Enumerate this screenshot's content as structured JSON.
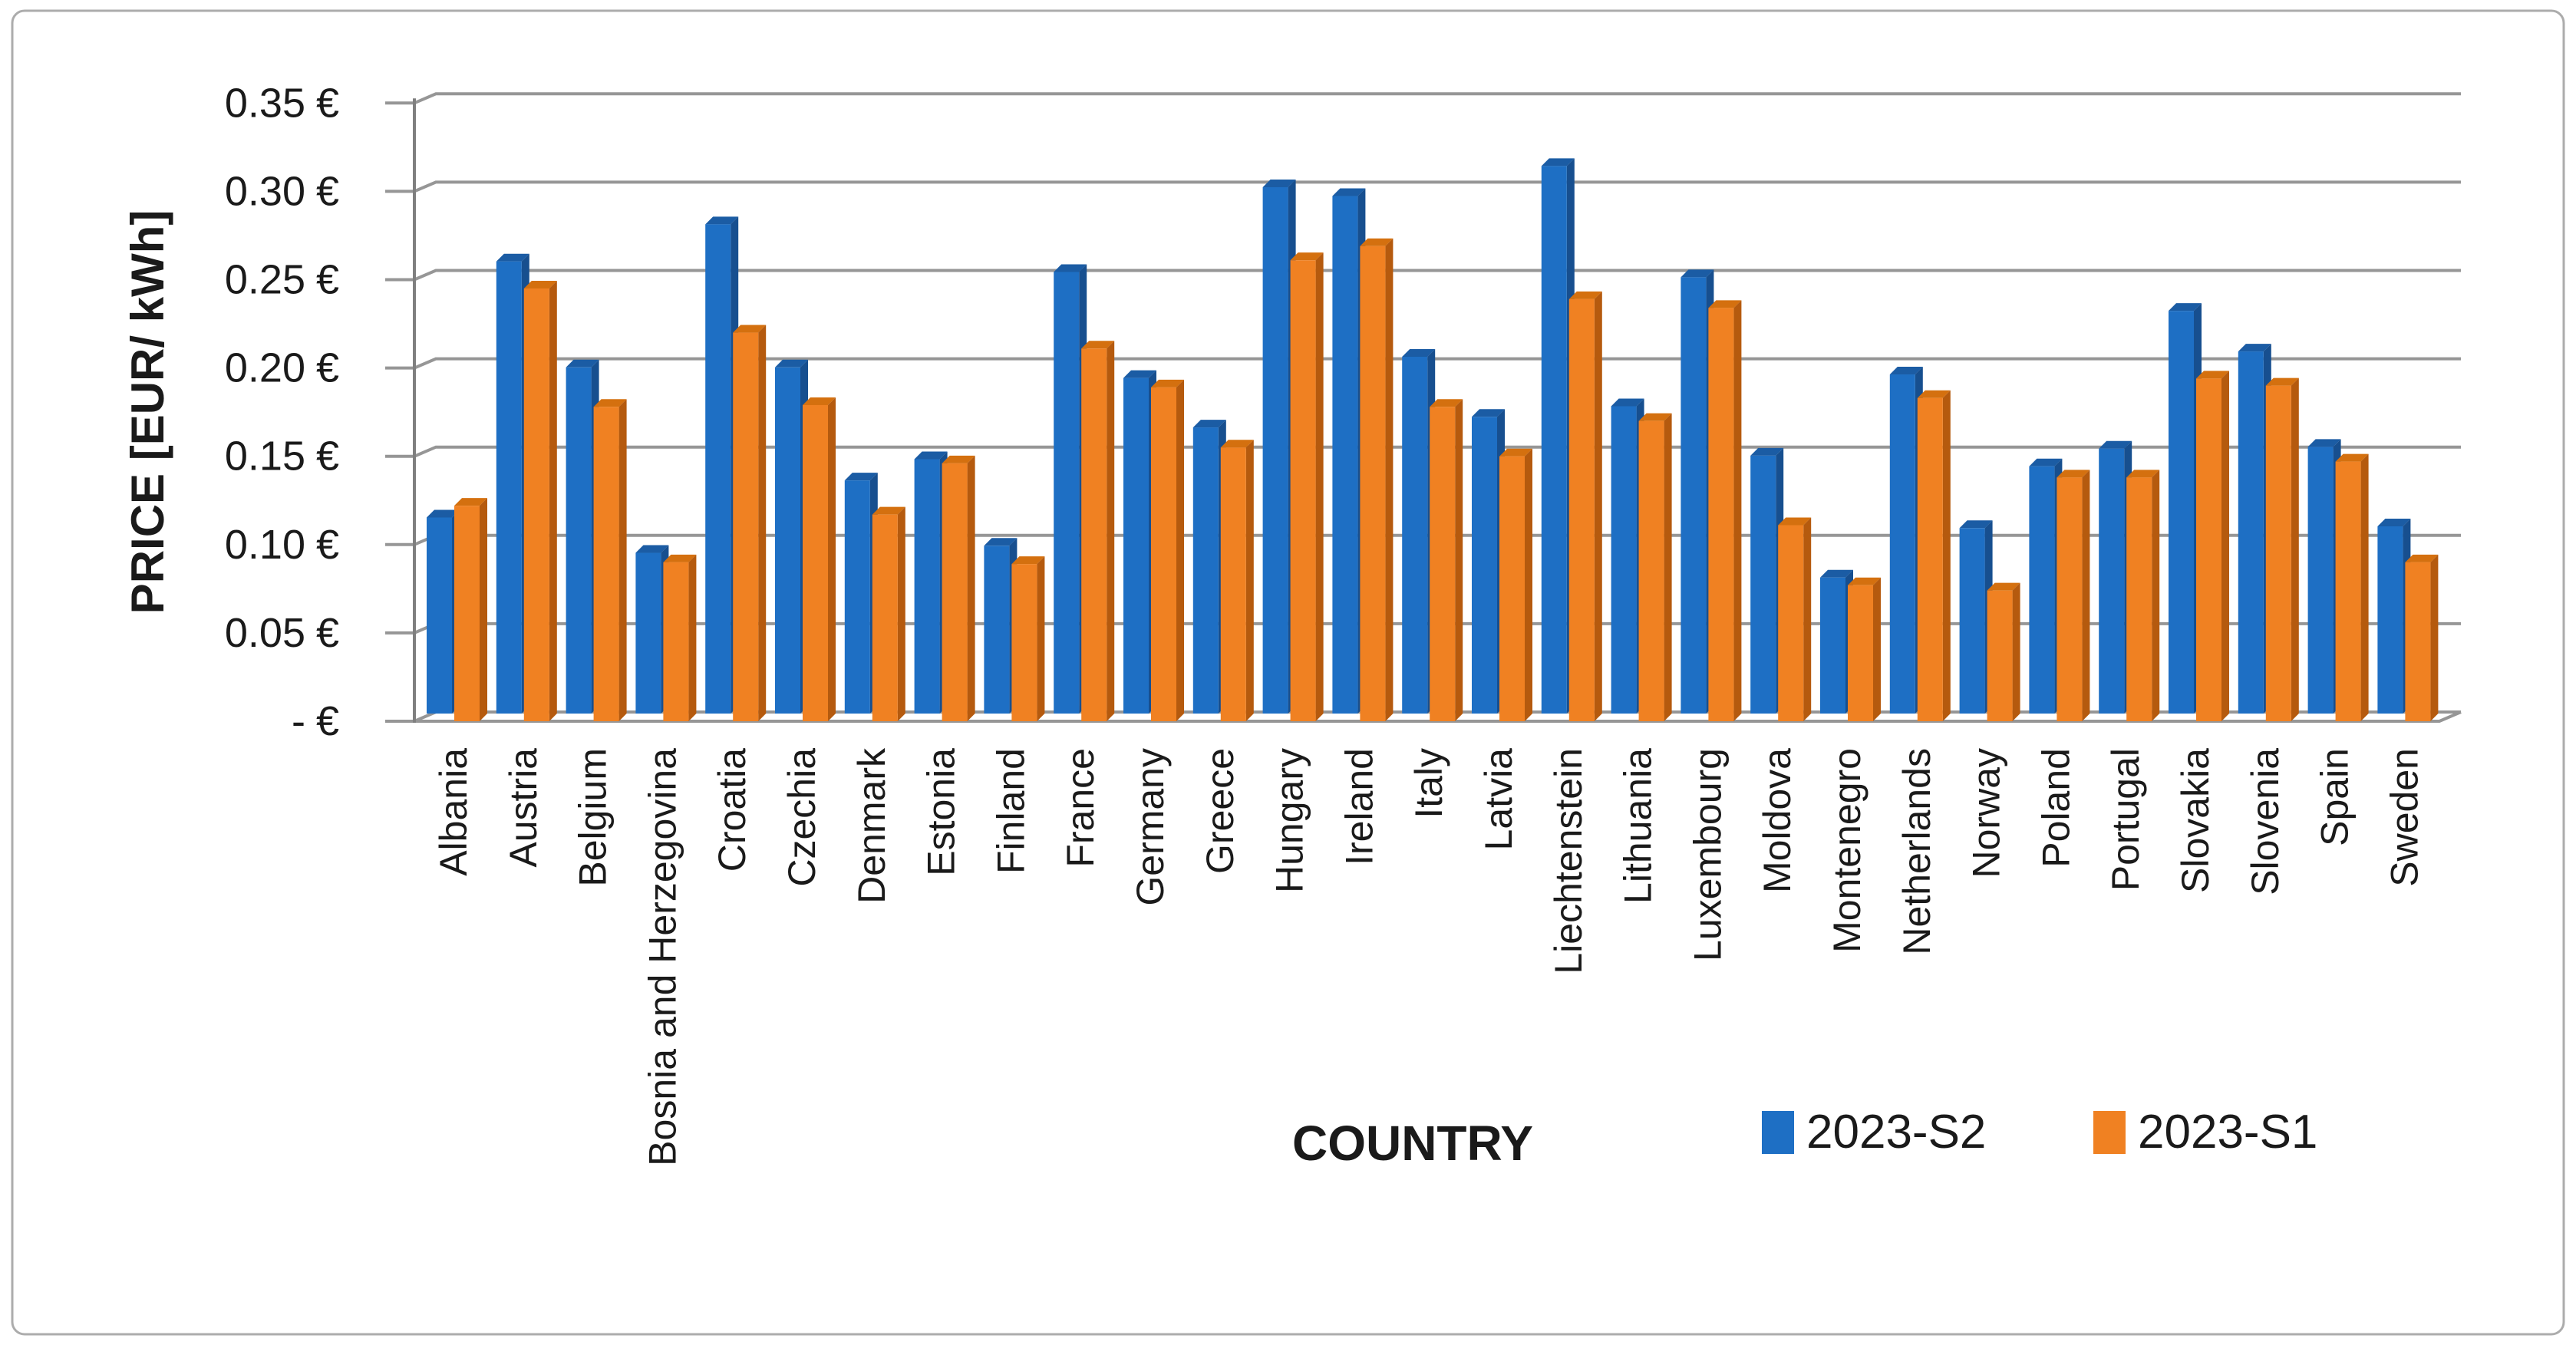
{
  "figure": {
    "background_color": "#FFFFFF",
    "border_color": "#ACACAC"
  },
  "chart_data": {
    "type": "bar",
    "title": "",
    "xlabel": "COUNTRY",
    "ylabel": "PRICE [EUR/ kWh]",
    "ylim": [
      0,
      0.35
    ],
    "ytick_step": 0.05,
    "grid": true,
    "legend_position": "bottom",
    "axis_color": "#7F7F7F",
    "gridline_color": "#969696",
    "text_color": "#1A1A1A",
    "yticks": [
      {
        "value": 0.35,
        "label": "0.35 €"
      },
      {
        "value": 0.3,
        "label": "0.30 €"
      },
      {
        "value": 0.25,
        "label": "0.25 €"
      },
      {
        "value": 0.2,
        "label": "0.20 €"
      },
      {
        "value": 0.15,
        "label": "0.15 €"
      },
      {
        "value": 0.1,
        "label": "0.10 €"
      },
      {
        "value": 0.05,
        "label": "0.05 €"
      },
      {
        "value": 0.0,
        "label": "- €"
      }
    ],
    "categories": [
      "Albania",
      "Austria",
      "Belgium",
      "Bosnia and Herzegovina",
      "Croatia",
      "Czechia",
      "Denmark",
      "Estonia",
      "Finland",
      "France",
      "Germany",
      "Greece",
      "Hungary",
      "Ireland",
      "Italy",
      "Latvia",
      "Liechtenstein",
      "Lithuania",
      "Luxembourg",
      "Moldova",
      "Montenegro",
      "Netherlands",
      "Norway",
      "Poland",
      "Portugal",
      "Slovakia",
      "Slovenia",
      "Spain",
      "Sweden"
    ],
    "series": [
      {
        "name": "2023-S2",
        "color": "#1E6FC4",
        "side_color": "#174F8F",
        "top_color": "#1B5CA4",
        "values": [
          0.111,
          0.256,
          0.196,
          0.091,
          0.277,
          0.196,
          0.132,
          0.144,
          0.095,
          0.25,
          0.19,
          0.162,
          0.298,
          0.293,
          0.202,
          0.168,
          0.31,
          0.174,
          0.247,
          0.146,
          0.077,
          0.192,
          0.105,
          0.14,
          0.15,
          0.228,
          0.205,
          0.151,
          0.106
        ]
      },
      {
        "name": "2023-S1",
        "color": "#F08122",
        "side_color": "#B55A0E",
        "top_color": "#D4700F",
        "values": [
          0.122,
          0.245,
          0.178,
          0.09,
          0.22,
          0.179,
          0.117,
          0.146,
          0.089,
          0.211,
          0.189,
          0.155,
          0.261,
          0.269,
          0.178,
          0.15,
          0.239,
          0.17,
          0.234,
          0.111,
          0.077,
          0.183,
          0.074,
          0.138,
          0.138,
          0.194,
          0.19,
          0.147,
          0.09
        ]
      }
    ]
  }
}
